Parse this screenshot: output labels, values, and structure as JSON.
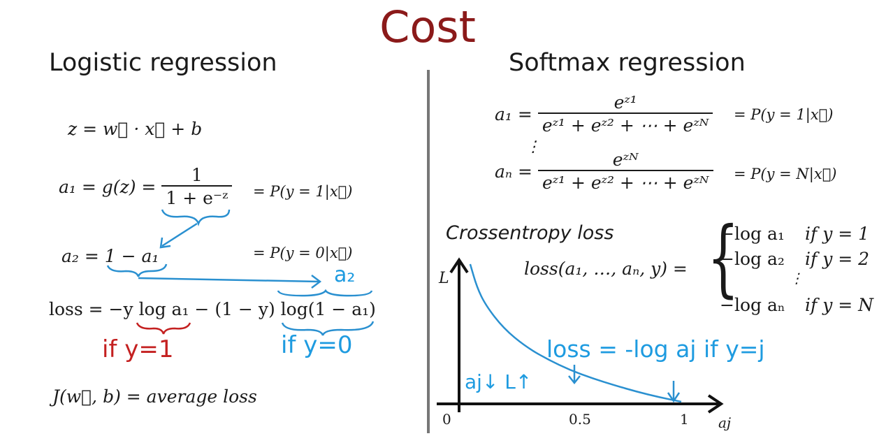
{
  "title": "Cost",
  "left": {
    "heading": "Logistic regression",
    "eq_z": "z = w⃗ · x⃗ + b",
    "eq_a1_lhs": "a₁ = g(z) =",
    "eq_a1_num": "1",
    "eq_a1_den": "1 + e⁻ᶻ",
    "eq_a1_prob": "= P(y = 1|x⃗)",
    "eq_a2": "a₂ = 1 − a₁",
    "eq_a2_prob": "= P(y = 0|x⃗)",
    "eq_loss": "loss = −y log a₁ − (1 − y) log(1 − a₁)",
    "note_a2": "a₂",
    "note_if_y1": "if y=1",
    "note_if_y0": "if y=0",
    "eq_J": "J(w⃗, b) = average loss"
  },
  "right": {
    "heading": "Softmax regression",
    "a1_lhs": "a₁ =",
    "a1_num": "eᶻ¹",
    "a1_den": "eᶻ¹ + eᶻ² + ⋯ + eᶻᴺ",
    "a1_prob": "= P(y = 1|x⃗)",
    "vdots": "⋮",
    "aN_lhs": "aₙ =",
    "aN_num": "eᶻᴺ",
    "aN_den": "eᶻ¹ + eᶻ² + ⋯ + eᶻᴺ",
    "aN_prob": "= P(y = N|x⃗)",
    "crossentropy_label": "Crossentropy loss",
    "loss_lhs": "loss(a₁, …, aₙ, y) =",
    "cases": [
      {
        "expr": "−log a₁",
        "cond": "if y = 1"
      },
      {
        "expr": "−log a₂",
        "cond": "if y = 2"
      },
      {
        "expr": "⋮",
        "cond": ""
      },
      {
        "expr": "−log aₙ",
        "cond": "if y = N"
      }
    ],
    "note_loss": "loss = -log aj if y=j",
    "note_arrows": "aj↓ L↑",
    "axis_y_label": "L",
    "axis_x_label": "aj",
    "x_ticks": [
      "0",
      "0.5",
      "1"
    ]
  },
  "chart_data": {
    "type": "line",
    "title": "Crossentropy loss",
    "xlabel": "aj",
    "ylabel": "L",
    "x_ticks": [
      0,
      0.5,
      1
    ],
    "series": [
      {
        "x": [
          0.05,
          0.08,
          0.12,
          0.2,
          0.3,
          0.4,
          0.5,
          0.6,
          0.7,
          0.8,
          0.9,
          1.0
        ],
        "y": [
          3.0,
          2.5,
          2.1,
          1.6,
          1.2,
          0.92,
          0.69,
          0.51,
          0.36,
          0.22,
          0.1,
          0.0
        ]
      }
    ],
    "colors": {
      "curve": "#2a90d0",
      "axes": "#111111"
    }
  }
}
